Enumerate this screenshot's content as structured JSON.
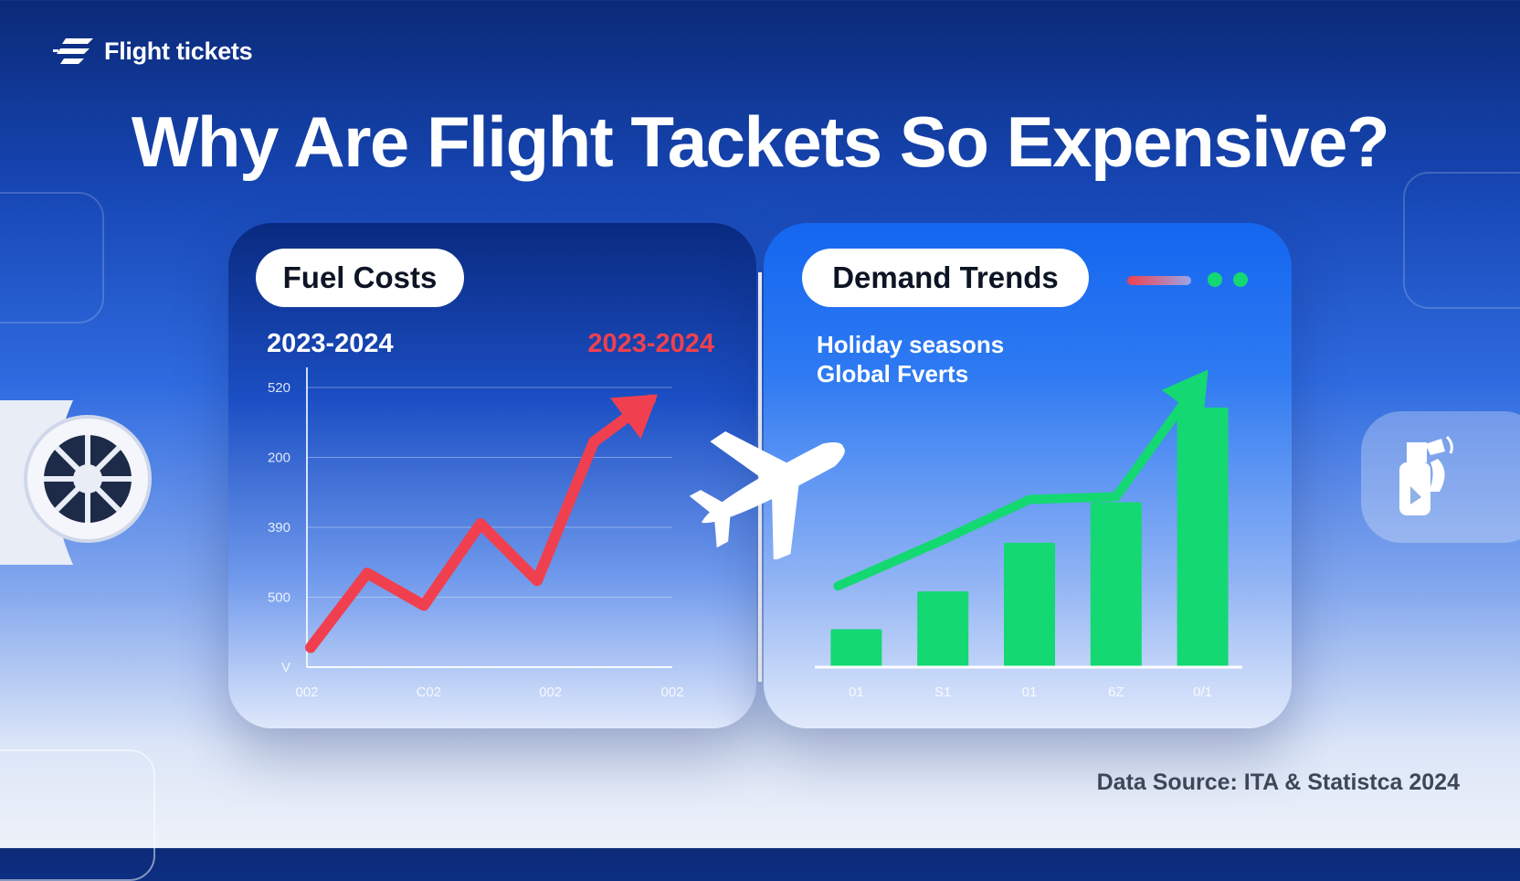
{
  "brand": {
    "name": "Flight tickets",
    "icon": "wing-logo-icon"
  },
  "headline": "Why Are Flight Tackets So Expensive?",
  "fuel_panel": {
    "title": "Fuel Costs",
    "period_left": "2023-2024",
    "period_right": "2023-2024",
    "accent": "#f0404f"
  },
  "demand_panel": {
    "title": "Demand Trends",
    "lines": [
      "Holiday seasons",
      "Global Fverts"
    ],
    "accent": "#14d872"
  },
  "source": "Data Source: ITA & Statistca 2024",
  "chart_data": [
    {
      "type": "line",
      "title": "Fuel Costs",
      "y_tick_labels": [
        "520",
        "200",
        "390",
        "500",
        "V"
      ],
      "x_tick_labels": [
        "002",
        "C02",
        "002",
        "002"
      ],
      "x": [
        0,
        1,
        2,
        3,
        4,
        5,
        6
      ],
      "series": [
        {
          "values": [
            5,
            35,
            22,
            55,
            32,
            88,
            105
          ],
          "color": "#f0404f"
        }
      ],
      "ylim": [
        0,
        110
      ],
      "grid": true
    },
    {
      "type": "bar",
      "title": "Demand Trends",
      "categories": [
        "01",
        "S1",
        "01",
        "6Z",
        "0/1"
      ],
      "values": [
        14,
        28,
        46,
        61,
        96
      ],
      "ylim": [
        0,
        100
      ],
      "trend": [
        30,
        47,
        62,
        63,
        110
      ],
      "color": "#14d872"
    }
  ]
}
